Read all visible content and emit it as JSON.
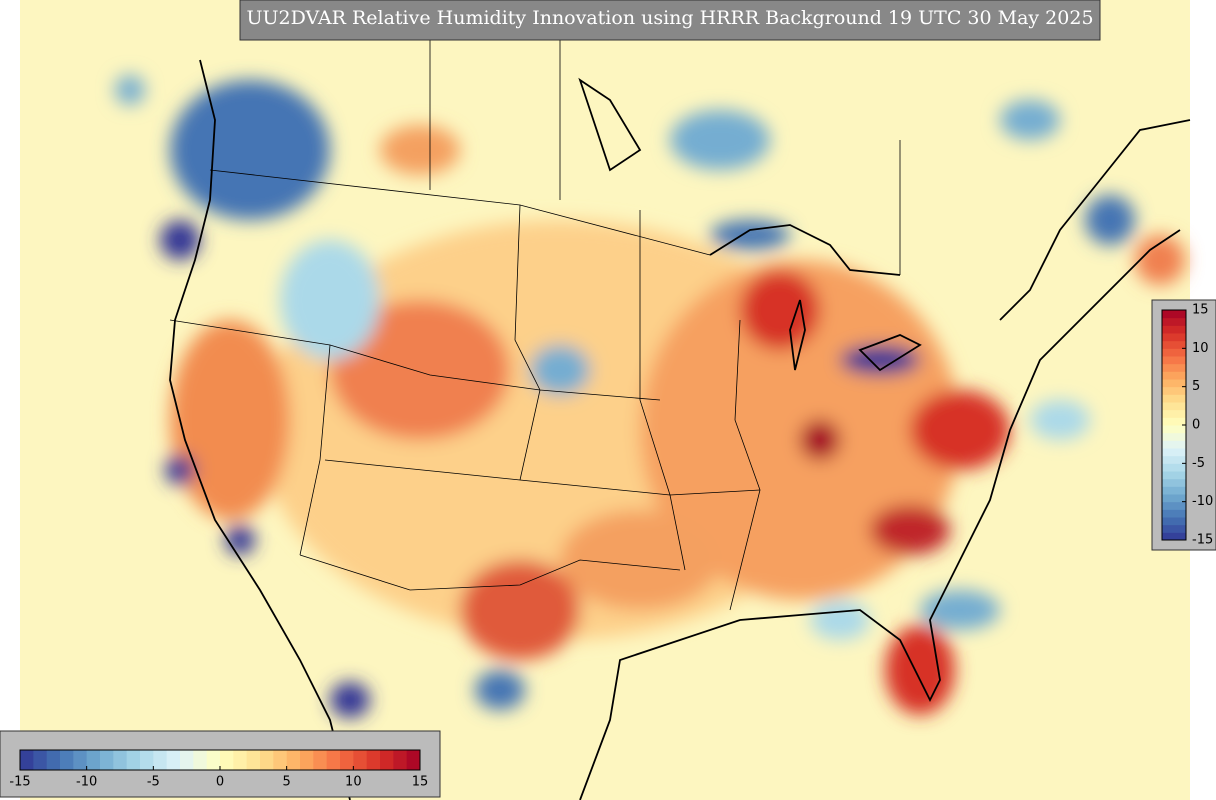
{
  "title": "UU2DVAR Relative Humidity Innovation using HRRR Background 19 UTC 30 May 2025",
  "colorbar": {
    "colors": [
      "#313695",
      "#4575b4",
      "#74add1",
      "#abd9e9",
      "#e0f3f8",
      "#ffffbf",
      "#fee090",
      "#fdae61",
      "#f46d43",
      "#d73027",
      "#a50026"
    ],
    "ticks": [
      -15,
      -10,
      -5,
      0,
      5,
      10,
      15
    ]
  }
}
